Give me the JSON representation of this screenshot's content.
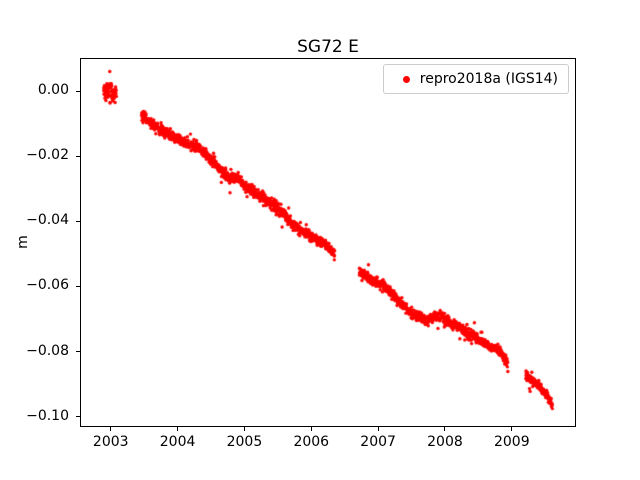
{
  "chart_data": {
    "type": "scatter",
    "title": "SG72 E",
    "xlabel": "",
    "ylabel": "m",
    "xlim": [
      2002.54,
      2009.96
    ],
    "ylim": [
      -0.1032,
      0.0102
    ],
    "grid": false,
    "background": "#ffffff",
    "xticks": [
      {
        "value": 2003,
        "label": "2003"
      },
      {
        "value": 2004,
        "label": "2004"
      },
      {
        "value": 2005,
        "label": "2005"
      },
      {
        "value": 2006,
        "label": "2006"
      },
      {
        "value": 2007,
        "label": "2007"
      },
      {
        "value": 2008,
        "label": "2008"
      },
      {
        "value": 2009,
        "label": "2009"
      }
    ],
    "yticks": [
      {
        "value": 0.0,
        "label": "0.00"
      },
      {
        "value": -0.02,
        "label": "−0.02"
      },
      {
        "value": -0.04,
        "label": "−0.04"
      },
      {
        "value": -0.06,
        "label": "−0.06"
      },
      {
        "value": -0.08,
        "label": "−0.08"
      },
      {
        "value": -0.1,
        "label": "−0.10"
      }
    ],
    "legend": {
      "location": "upper right"
    },
    "series": [
      {
        "name": "repro2018a (IGS14)",
        "color": "#ff0000",
        "marker": "dot",
        "marker_radius": 1.7,
        "segments": [
          {
            "points": 70,
            "noise": 0.0015,
            "anchors": [
              [
                2002.88,
                0.0006
              ],
              [
                2003.07,
                -0.0006
              ]
            ]
          },
          {
            "points": 1050,
            "noise": 0.0008,
            "anchors": [
              [
                2003.45,
                -0.0075
              ],
              [
                2003.7,
                -0.011
              ],
              [
                2004.0,
                -0.0145
              ],
              [
                2004.3,
                -0.017
              ],
              [
                2004.55,
                -0.022
              ],
              [
                2004.75,
                -0.0265
              ],
              [
                2004.9,
                -0.0265
              ],
              [
                2005.0,
                -0.029
              ],
              [
                2005.25,
                -0.0325
              ],
              [
                2005.5,
                -0.036
              ],
              [
                2005.75,
                -0.0415
              ],
              [
                2006.0,
                -0.0445
              ],
              [
                2006.2,
                -0.047
              ],
              [
                2006.35,
                -0.05
              ]
            ]
          },
          {
            "points": 800,
            "noise": 0.0008,
            "anchors": [
              [
                2006.72,
                -0.056
              ],
              [
                2006.9,
                -0.058
              ],
              [
                2007.1,
                -0.06
              ],
              [
                2007.3,
                -0.064
              ],
              [
                2007.5,
                -0.0685
              ],
              [
                2007.75,
                -0.0705
              ],
              [
                2007.95,
                -0.069
              ],
              [
                2008.1,
                -0.0715
              ],
              [
                2008.35,
                -0.0745
              ],
              [
                2008.6,
                -0.0775
              ],
              [
                2008.85,
                -0.0805
              ],
              [
                2008.95,
                -0.084
              ]
            ]
          },
          {
            "points": 150,
            "noise": 0.0007,
            "anchors": [
              [
                2009.22,
                -0.0875
              ],
              [
                2009.4,
                -0.0905
              ],
              [
                2009.55,
                -0.094
              ],
              [
                2009.62,
                -0.0965
              ]
            ]
          }
        ]
      }
    ]
  }
}
